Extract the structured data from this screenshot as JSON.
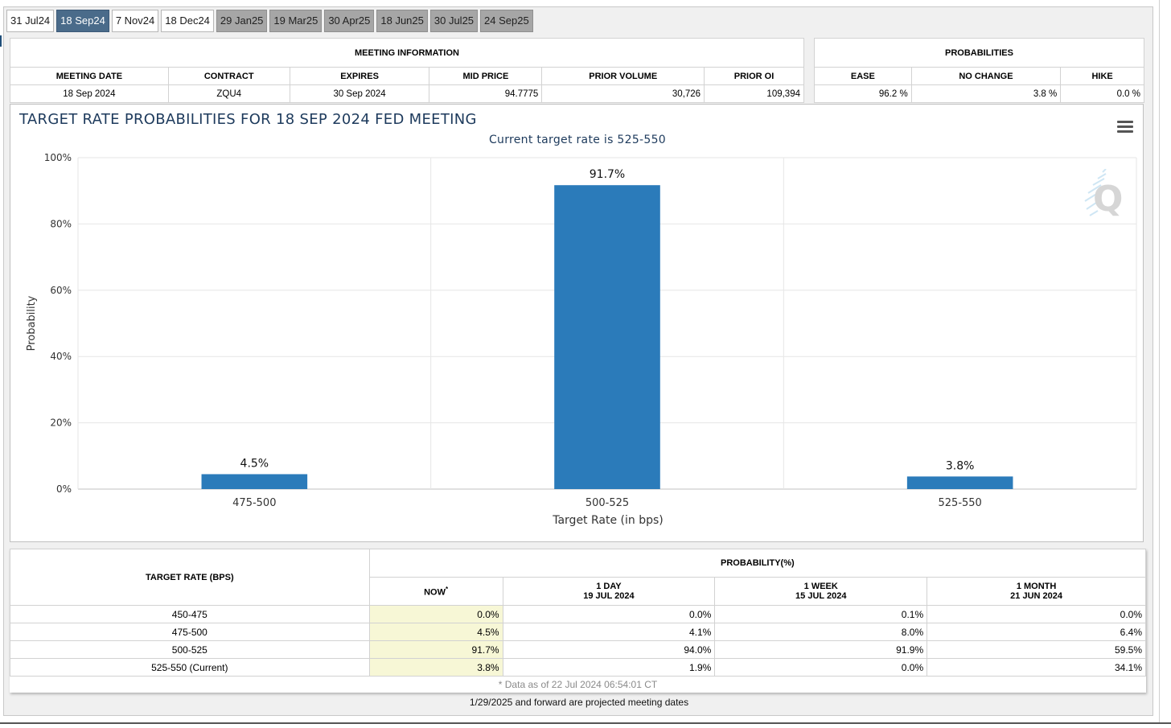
{
  "tabs": [
    {
      "label": "31 Jul24",
      "state": "normal"
    },
    {
      "label": "18 Sep24",
      "state": "active"
    },
    {
      "label": "7 Nov24",
      "state": "normal"
    },
    {
      "label": "18 Dec24",
      "state": "normal"
    },
    {
      "label": "29 Jan25",
      "state": "gray"
    },
    {
      "label": "19 Mar25",
      "state": "gray"
    },
    {
      "label": "30 Apr25",
      "state": "gray"
    },
    {
      "label": "18 Jun25",
      "state": "gray"
    },
    {
      "label": "30 Jul25",
      "state": "gray"
    },
    {
      "label": "24 Sep25",
      "state": "gray"
    }
  ],
  "meeting_info": {
    "title": "MEETING INFORMATION",
    "headers": [
      "MEETING DATE",
      "CONTRACT",
      "EXPIRES",
      "MID PRICE",
      "PRIOR VOLUME",
      "PRIOR OI"
    ],
    "values": [
      "18 Sep 2024",
      "ZQU4",
      "30 Sep 2024",
      "94.7775",
      "30,726",
      "109,394"
    ]
  },
  "probabilities": {
    "title": "PROBABILITIES",
    "headers": [
      "EASE",
      "NO CHANGE",
      "HIKE"
    ],
    "values": [
      "96.2 %",
      "3.8 %",
      "0.0 %"
    ]
  },
  "chart": {
    "menu_icon": "hamburger-menu-icon",
    "watermark_icon": "quikstrike-q-logo",
    "bar_color": "#2b7bba"
  },
  "chart_data": {
    "type": "bar",
    "title": "TARGET RATE PROBABILITIES FOR 18 SEP 2024 FED MEETING",
    "subtitle": "Current target rate is 525-550",
    "xlabel": "Target Rate (in bps)",
    "ylabel": "Probability",
    "categories": [
      "475-500",
      "500-525",
      "525-550"
    ],
    "values": [
      4.5,
      91.7,
      3.8
    ],
    "data_labels": [
      "4.5%",
      "91.7%",
      "3.8%"
    ],
    "ylim": [
      0,
      100
    ],
    "yticks": [
      "0%",
      "20%",
      "40%",
      "60%",
      "80%",
      "100%"
    ],
    "ytick_values": [
      0,
      20,
      40,
      60,
      80,
      100
    ],
    "grid": true
  },
  "prob_table": {
    "target_header": "TARGET RATE (BPS)",
    "prob_header": "PROBABILITY(%)",
    "columns": [
      {
        "label": "NOW",
        "sup": "*",
        "date": ""
      },
      {
        "label": "1 DAY",
        "date": "19 JUL 2024"
      },
      {
        "label": "1 WEEK",
        "date": "15 JUL 2024"
      },
      {
        "label": "1 MONTH",
        "date": "21 JUN 2024"
      }
    ],
    "rows": [
      {
        "rate": "450-475",
        "values": [
          "0.0%",
          "0.0%",
          "0.1%",
          "0.0%"
        ]
      },
      {
        "rate": "475-500",
        "values": [
          "4.5%",
          "4.1%",
          "8.0%",
          "6.4%"
        ]
      },
      {
        "rate": "500-525",
        "values": [
          "91.7%",
          "94.0%",
          "91.9%",
          "59.5%"
        ]
      },
      {
        "rate": "525-550 (Current)",
        "values": [
          "3.8%",
          "1.9%",
          "0.0%",
          "34.1%"
        ]
      }
    ],
    "note": "* Data as of 22 Jul 2024 06:54:01 CT"
  },
  "footer_note": "1/29/2025 and forward are projected meeting dates"
}
